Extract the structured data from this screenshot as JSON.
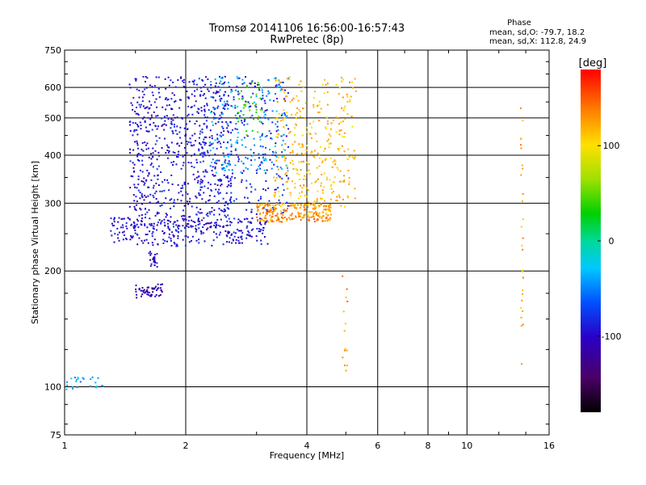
{
  "chart_data": {
    "type": "scatter",
    "title": "Tromsø 20141106 16:56:00-16:57:43",
    "subtitle": "RwPretec (8p)",
    "xlabel": "Frequency [MHz]",
    "ylabel": "Stationary phase Virtual Height [km]",
    "x_scale": "log",
    "y_scale": "log",
    "xlim": [
      1,
      16
    ],
    "ylim": [
      75,
      750
    ],
    "x_ticks": [
      "1",
      "2",
      "4",
      "6",
      "8",
      "10",
      "16"
    ],
    "x_tick_values": [
      1,
      2,
      4,
      6,
      8,
      10,
      16
    ],
    "y_ticks": [
      "75",
      "100",
      "200",
      "300",
      "400",
      "500",
      "600",
      "750"
    ],
    "y_tick_values": [
      75,
      100,
      200,
      300,
      400,
      500,
      600,
      750
    ],
    "grid": true,
    "stats": {
      "heading": "Phase",
      "line_o": "mean, sd,O: -79.7, 18.2",
      "line_x": "mean, sd,X: 112.8, 24.9"
    },
    "colorbar": {
      "label": "[deg]",
      "range": [
        -180,
        180
      ],
      "ticks": [
        "100",
        "0",
        "-100"
      ],
      "tick_values": [
        100,
        0,
        -100
      ],
      "colormap": "rainbow"
    },
    "point_groups": [
      {
        "name": "O-trace lower edge",
        "x_range": [
          1.3,
          3.2
        ],
        "y_range": [
          232,
          275
        ],
        "phase": -95,
        "count": 260
      },
      {
        "name": "O-trace dense body",
        "x_range": [
          1.45,
          2.6
        ],
        "y_range": [
          250,
          640
        ],
        "phase": -95,
        "count": 700
      },
      {
        "name": "O-trace upper scatter",
        "x_range": [
          2.1,
          3.6
        ],
        "y_range": [
          280,
          640
        ],
        "phase": -85,
        "count": 260
      },
      {
        "name": "Cyan band",
        "x_range": [
          2.3,
          3.6
        ],
        "y_range": [
          360,
          640
        ],
        "phase": -40,
        "count": 160
      },
      {
        "name": "Green-yellow column",
        "x_range": [
          2.7,
          3.1
        ],
        "y_range": [
          450,
          620
        ],
        "phase": 40,
        "count": 40
      },
      {
        "name": "X-trace orange edge",
        "x_range": [
          3.0,
          4.6
        ],
        "y_range": [
          268,
          300
        ],
        "phase": 130,
        "count": 230
      },
      {
        "name": "X-trace upper body",
        "x_range": [
          3.3,
          5.3
        ],
        "y_range": [
          290,
          640
        ],
        "phase": 115,
        "count": 330
      },
      {
        "name": "Low blob near 1.6 MHz",
        "x_range": [
          1.5,
          1.75
        ],
        "y_range": [
          170,
          185
        ],
        "phase": -115,
        "count": 55
      },
      {
        "name": "Blob near 1.6 MHz 220 km",
        "x_range": [
          1.6,
          1.7
        ],
        "y_range": [
          205,
          225
        ],
        "phase": -105,
        "count": 25
      },
      {
        "name": "E-region points",
        "x_range": [
          1.0,
          1.25
        ],
        "y_range": [
          98,
          106
        ],
        "phase": -40,
        "count": 25
      },
      {
        "name": "Sparse points 14 MHz",
        "x_range": [
          13.6,
          13.8
        ],
        "y_range": [
          105,
          530
        ],
        "phase": 120,
        "count": 28
      },
      {
        "name": "Sparse points 5 MHz",
        "x_range": [
          4.9,
          5.05
        ],
        "y_range": [
          110,
          200
        ],
        "phase": 130,
        "count": 14
      }
    ]
  }
}
